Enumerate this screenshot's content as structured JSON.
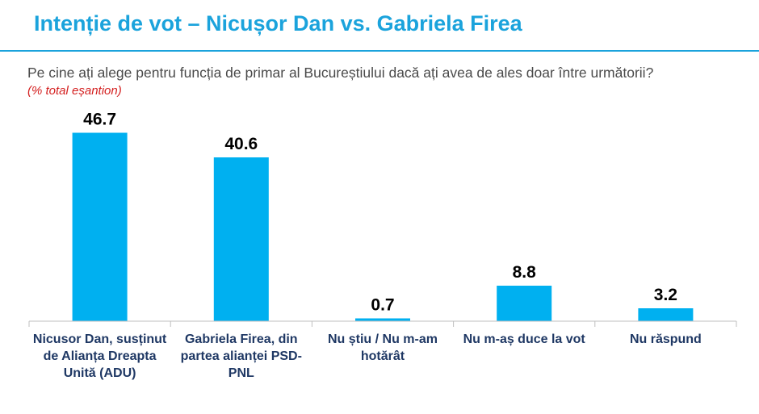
{
  "header": {
    "title": "Intenție de vot – Nicușor Dan vs. Gabriela Firea",
    "question": "Pe cine ați alege pentru funcția de primar al Bucureștiului dacă ați avea de ales doar între următorii?",
    "note": "(% total eșantion)"
  },
  "colors": {
    "accent": "#1ba3dc",
    "bar": "#00b0f0",
    "note": "#d42020",
    "category_text": "#1f3864"
  },
  "chart_data": {
    "type": "bar",
    "title": "Intenție de vot – Nicușor Dan vs. Gabriela Firea",
    "categories": [
      "Nicusor Dan, susținut de Alianța Dreapta Unită (ADU)",
      "Gabriela Firea, din partea alianței PSD-PNL",
      "Nu știu / Nu m-am hotărât",
      "Nu m-aș duce la vot",
      "Nu răspund"
    ],
    "values": [
      46.7,
      40.6,
      0.7,
      8.8,
      3.2
    ],
    "value_labels": [
      "46.7",
      "40.6",
      "0.7",
      "8.8",
      "3.2"
    ],
    "xlabel": "",
    "ylabel": "",
    "ylim": [
      0,
      50
    ],
    "grid": false,
    "legend": "none"
  }
}
